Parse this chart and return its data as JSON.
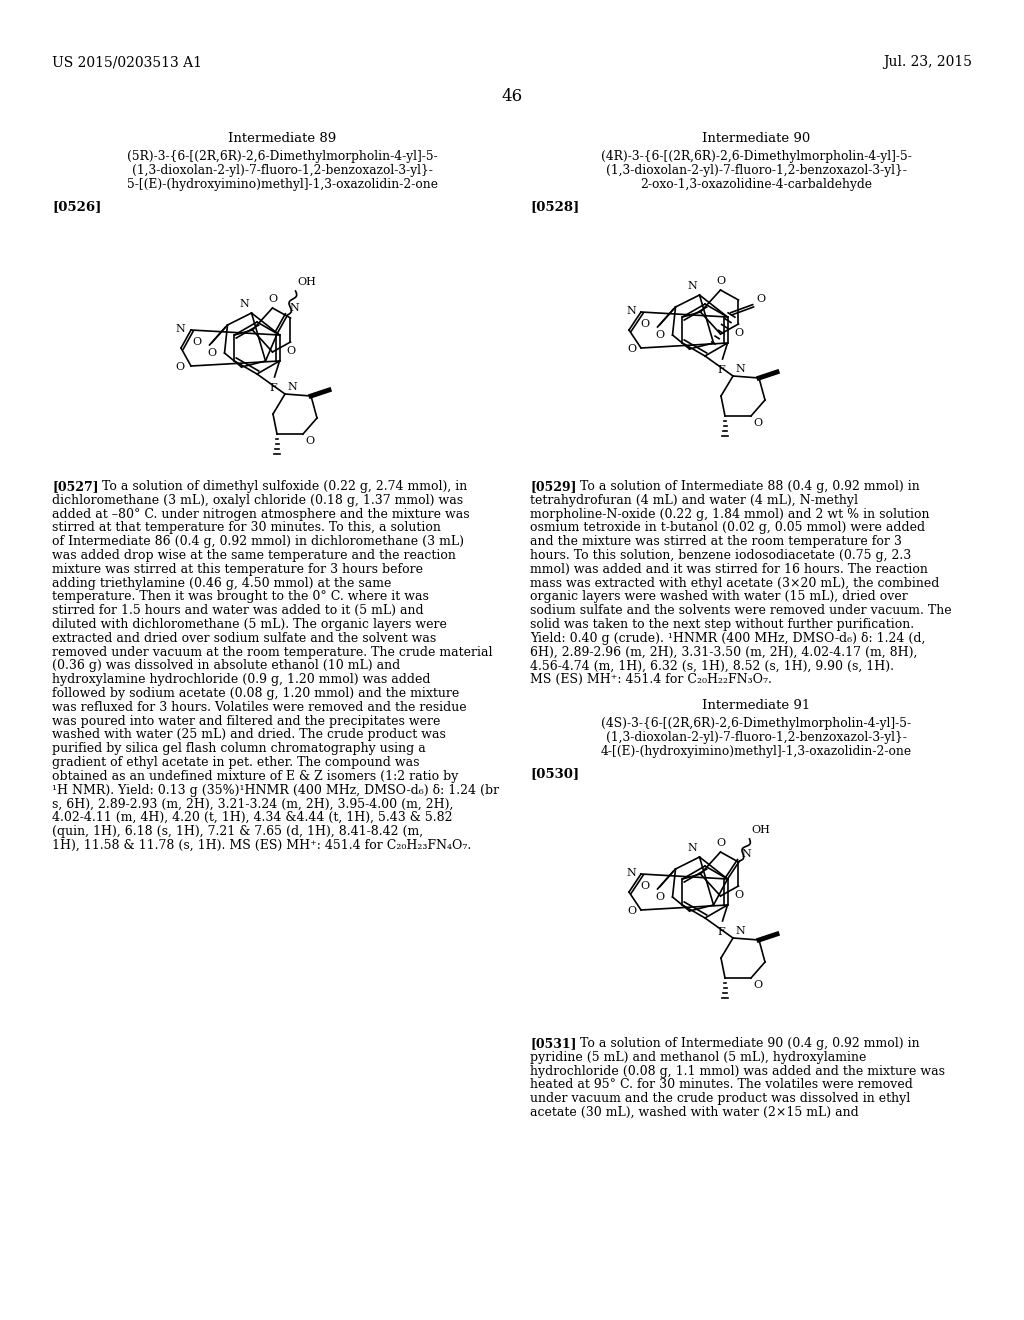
{
  "background_color": "#ffffff",
  "header_left": "US 2015/0203513 A1",
  "header_right": "Jul. 23, 2015",
  "page_number": "46",
  "int89_title": "Intermediate 89",
  "int89_name": "(5R)-3-{6-[(2R,6R)-2,6-Dimethylmorpholin-4-yl]-5-\n(1,3-dioxolan-2-yl)-7-fluoro-1,2-benzoxazol-3-yl}-\n5-[(E)-(hydroxyimino)methyl]-1,3-oxazolidin-2-one",
  "int89_para": "[0526]",
  "int90_title": "Intermediate 90",
  "int90_name": "(4R)-3-{6-[(2R,6R)-2,6-Dimethylmorpholin-4-yl]-5-\n(1,3-dioxolan-2-yl)-7-fluoro-1,2-benzoxazol-3-yl}-\n2-oxo-1,3-oxazolidine-4-carbaldehyde",
  "int90_para": "[0528]",
  "int91_title": "Intermediate 91",
  "int91_name": "(4S)-3-{6-[(2R,6R)-2,6-Dimethylmorpholin-4-yl]-5-\n(1,3-dioxolan-2-yl)-7-fluoro-1,2-benzoxazol-3-yl}-\n4-[(E)-(hydroxyimino)methyl]-1,3-oxazolidin-2-one",
  "int91_para": "[0530]",
  "p0527_label": "[0527]",
  "p0527": "To a solution of dimethyl sulfoxide (0.22 g, 2.74 mmol), in dichloromethane (3 mL), oxalyl chloride (0.18 g, 1.37 mmol) was added at –80° C. under nitrogen atmosphere and the mixture was stirred at that temperature for 30 minutes. To this, a solution of Intermediate 86 (0.4 g, 0.92 mmol) in dichloromethane (3 mL) was added drop wise at the same temperature and the reaction mixture was stirred at this temperature for 3 hours before adding triethylamine (0.46 g, 4.50 mmol) at the same temperature. Then it was brought to the 0° C. where it was stirred for 1.5 hours and water was added to it (5 mL) and diluted with dichloromethane (5 mL). The organic layers were extracted and dried over sodium sulfate and the solvent was removed under vacuum at the room temperature. The crude material (0.36 g) was dissolved in absolute ethanol (10 mL) and hydroxylamine hydrochloride (0.9 g, 1.20 mmol) was added followed by sodium acetate (0.08 g, 1.20 mmol) and the mixture was refluxed for 3 hours. Volatiles were removed and the residue was poured into water and filtered and the precipitates were washed with water (25 mL) and dried. The crude product was purified by silica gel flash column chromatography using a gradient of ethyl acetate in pet. ether. The compound was obtained as an undefined mixture of E & Z isomers (1:2 ratio by ¹H NMR). Yield: 0.13 g (35%)¹HNMR (400 MHz, DMSO-d₆) δ: 1.24 (br s, 6H), 2.89-2.93 (m, 2H), 3.21-3.24 (m, 2H), 3.95-4.00 (m, 2H), 4.02-4.11 (m, 4H), 4.20 (t, 1H), 4.34 &4.44 (t, 1H), 5.43 & 5.82 (quin, 1H), 6.18 (s, 1H), 7.21 & 7.65 (d, 1H), 8.41-8.42 (m, 1H), 11.58 & 11.78 (s, 1H). MS (ES) MH⁺: 451.4 for C₂₀H₂₃FN₄O₇.",
  "p0529_label": "[0529]",
  "p0529": "To a solution of Intermediate 88 (0.4 g, 0.92 mmol) in tetrahydrofuran (4 mL) and water (4 mL), N-methyl morpholine-N-oxide (0.22 g, 1.84 mmol) and 2 wt % in solution osmium tetroxide in t-butanol (0.02 g, 0.05 mmol) were added and the mixture was stirred at the room temperature for 3 hours. To this solution, benzene iodosodiacetate (0.75 g, 2.3 mmol) was added and it was stirred for 16 hours. The reaction mass was extracted with ethyl acetate (3×20 mL), the combined organic layers were washed with water (15 mL), dried over sodium sulfate and the solvents were removed under vacuum. The solid was taken to the next step without further purification. Yield: 0.40 g (crude). ¹HNMR (400 MHz, DMSO-d₆) δ: 1.24 (d, 6H), 2.89-2.96 (m, 2H), 3.31-3.50 (m, 2H), 4.02-4.17 (m, 8H), 4.56-4.74 (m, 1H), 6.32 (s, 1H), 8.52 (s, 1H), 9.90 (s, 1H). MS (ES) MH⁺: 451.4 for C₂₀H₂₂FN₃O₇.",
  "p0531_label": "[0531]",
  "p0531": "To a solution of Intermediate 90 (0.4 g, 0.92 mmol) in pyridine (5 mL) and methanol (5 mL), hydroxylamine hydrochloride (0.08 g, 1.1 mmol) was added and the mixture was heated at 95° C. for 30 minutes. The volatiles were removed under vacuum and the crude product was dissolved in ethyl acetate (30 mL), washed with water (2×15 mL) and"
}
